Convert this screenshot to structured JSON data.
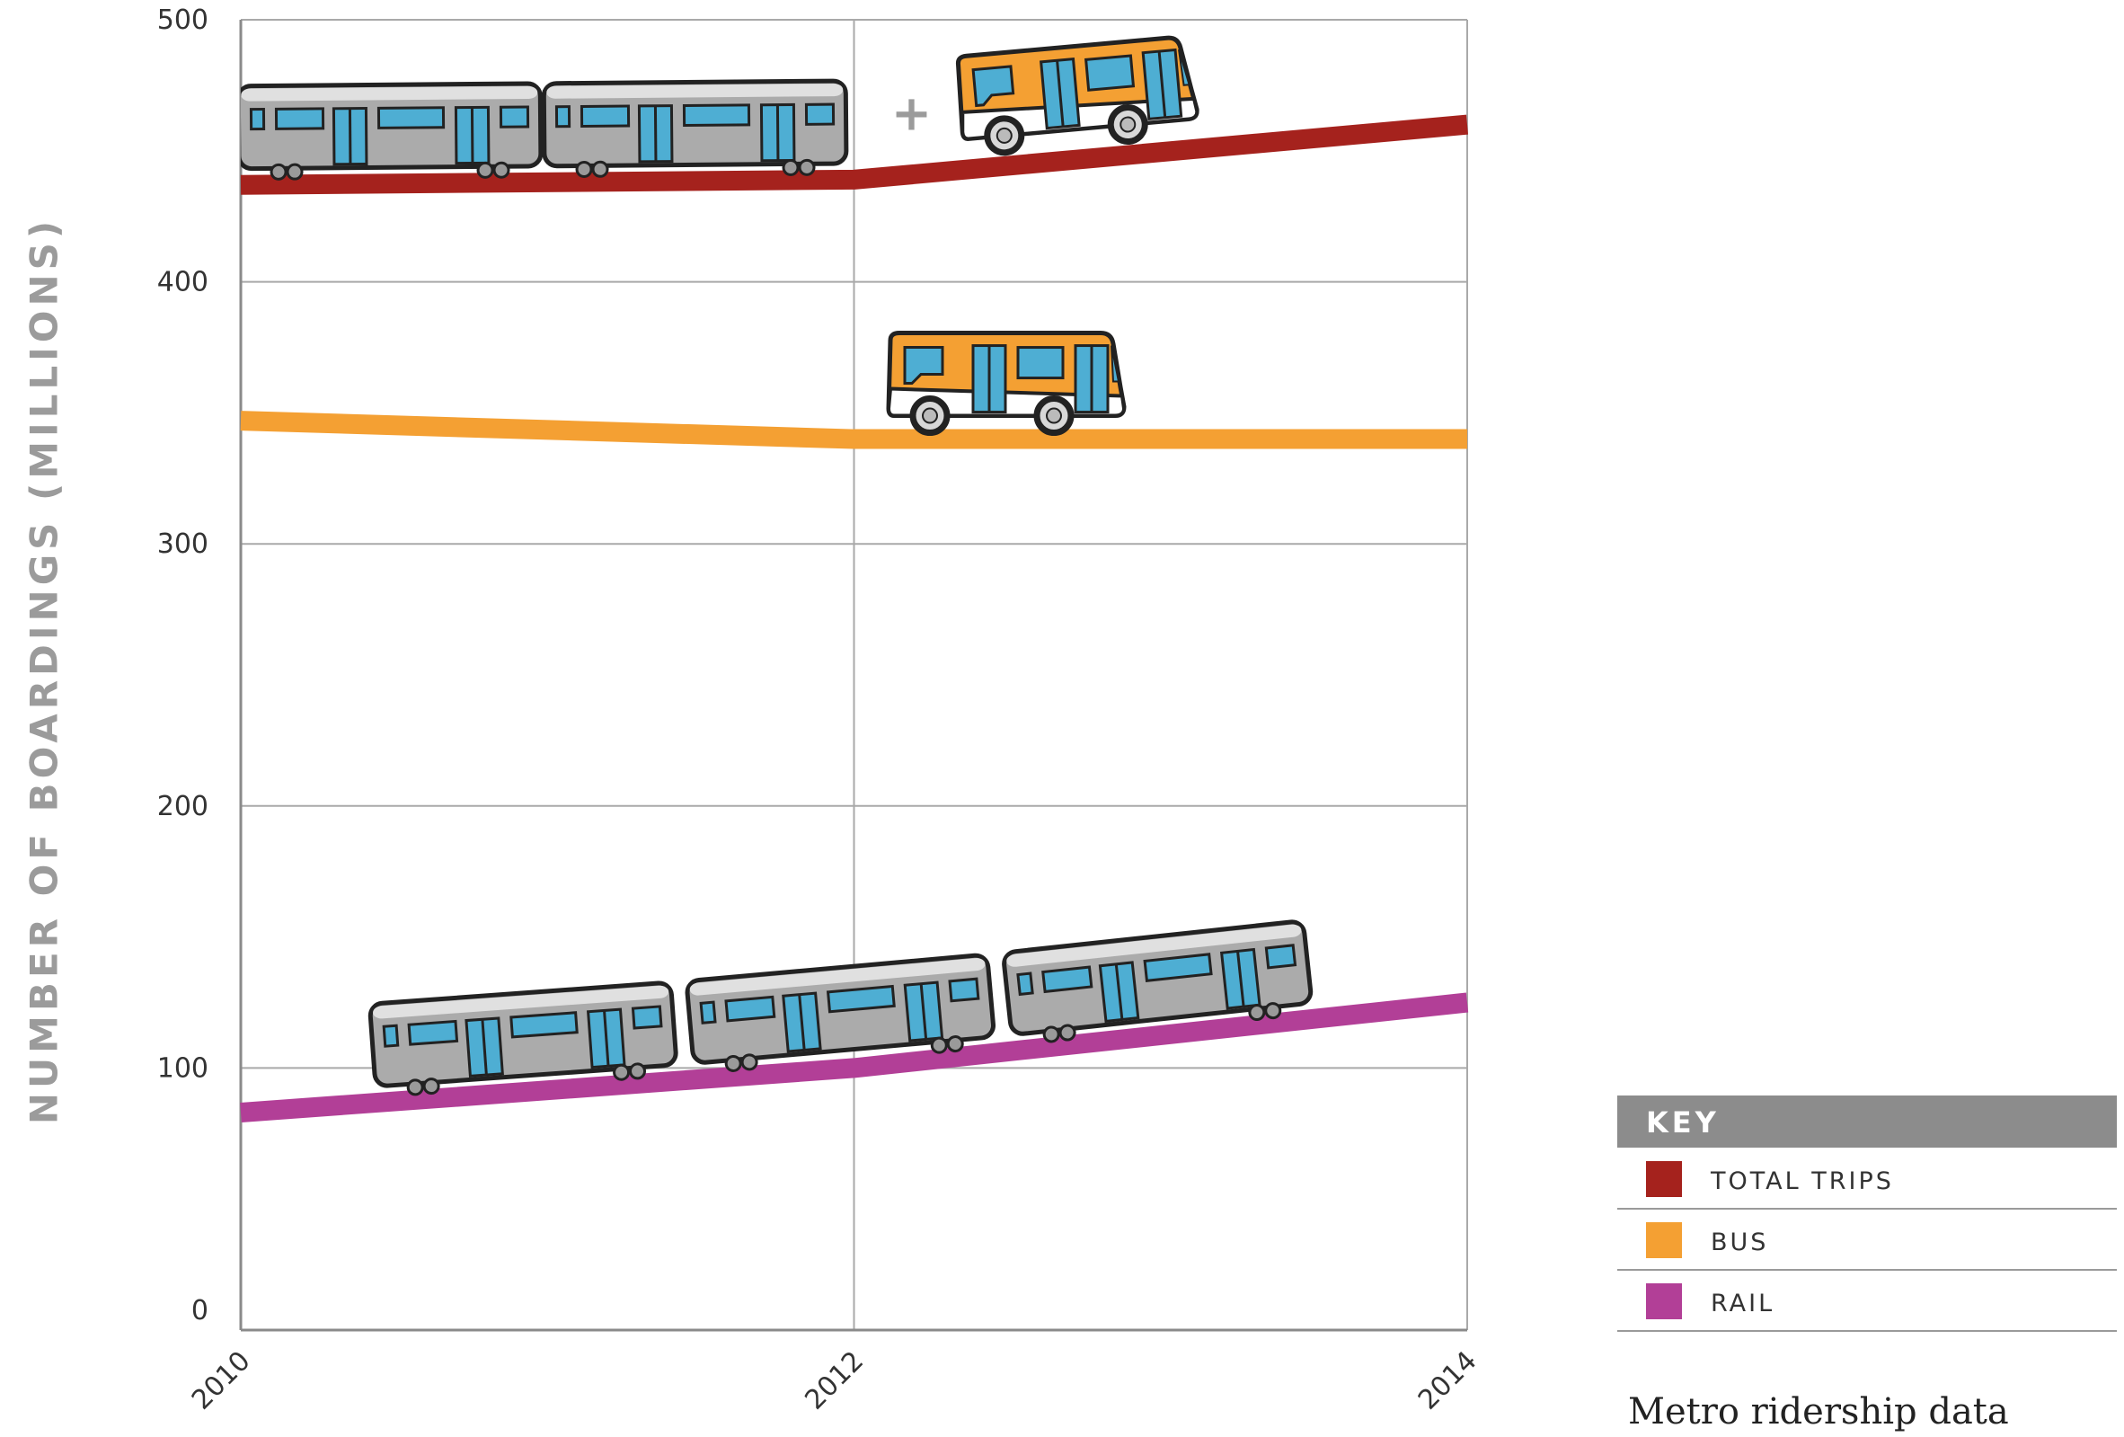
{
  "chart_data": {
    "type": "line",
    "title": "",
    "xlabel": "",
    "ylabel": "NUMBER OF BOARDINGS (MILLIONS)",
    "x": [
      2010,
      2012,
      2014
    ],
    "xlim": [
      2010,
      2014
    ],
    "ylim": [
      0,
      500
    ],
    "yticks": [
      0,
      100,
      200,
      300,
      400,
      500
    ],
    "xtick_labels": [
      "2010",
      "2012",
      "2014"
    ],
    "ytick_labels": [
      "0",
      "100",
      "200",
      "300",
      "400",
      "500"
    ],
    "grid": true,
    "series": [
      {
        "name": "TOTAL TRIPS",
        "color": "#a5221d",
        "values": [
          437,
          439,
          460
        ]
      },
      {
        "name": "BUS",
        "color": "#f4a033",
        "values": [
          347,
          340,
          340
        ]
      },
      {
        "name": "RAIL",
        "color": "#b23f97",
        "values": [
          83,
          100,
          125
        ]
      }
    ],
    "legend": {
      "title": "KEY",
      "placement": "bottom-right"
    },
    "annotations": [
      {
        "text": "+",
        "type": "plus-sign"
      }
    ],
    "illustrations": [
      "rail-train-icon",
      "bus-icon"
    ]
  },
  "caption": "Metro ridership data"
}
